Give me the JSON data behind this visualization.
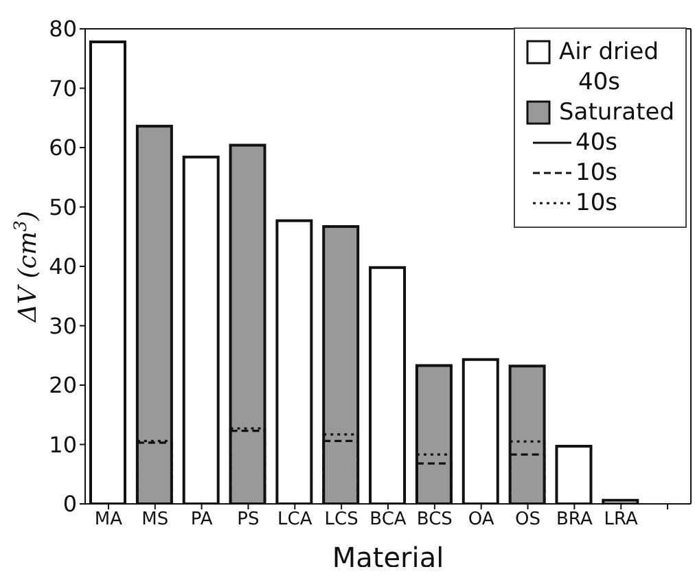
{
  "chart_data": {
    "type": "bar",
    "xlabel": "Material",
    "ylabel": "ΔV (cm$^{3}$)",
    "categories": [
      "MA",
      "MS",
      "PA",
      "PS",
      "LCA",
      "LCS",
      "BCA",
      "BCS",
      "OA",
      "OS",
      "BRA",
      "LRA",
      null
    ],
    "series": [
      {
        "name": "Air dried",
        "color": "#ffffff",
        "values": [
          77.8,
          null,
          58.4,
          null,
          47.7,
          null,
          39.8,
          null,
          24.3,
          null,
          9.7,
          0.6,
          null
        ]
      },
      {
        "name": "Saturated",
        "color": "#999999",
        "values": [
          null,
          63.6,
          null,
          60.4,
          null,
          46.7,
          null,
          23.3,
          null,
          23.2,
          null,
          null,
          null
        ]
      },
      {
        "name": "10s",
        "line_style": "dashed",
        "values": [
          null,
          10.3,
          null,
          12.3,
          null,
          10.6,
          null,
          6.8,
          null,
          8.3,
          null,
          null,
          null
        ]
      },
      {
        "name": "10s",
        "line_style": "dotted",
        "values": [
          null,
          10.6,
          null,
          12.7,
          null,
          11.7,
          null,
          8.3,
          null,
          10.5,
          null,
          null,
          null
        ]
      }
    ],
    "annotations": [
      "40s",
      "40s"
    ],
    "ylim": [
      0,
      80
    ],
    "yticks": [
      0,
      10,
      20,
      30,
      40,
      50,
      60,
      70,
      80
    ],
    "grid": false,
    "legend": "top right"
  }
}
